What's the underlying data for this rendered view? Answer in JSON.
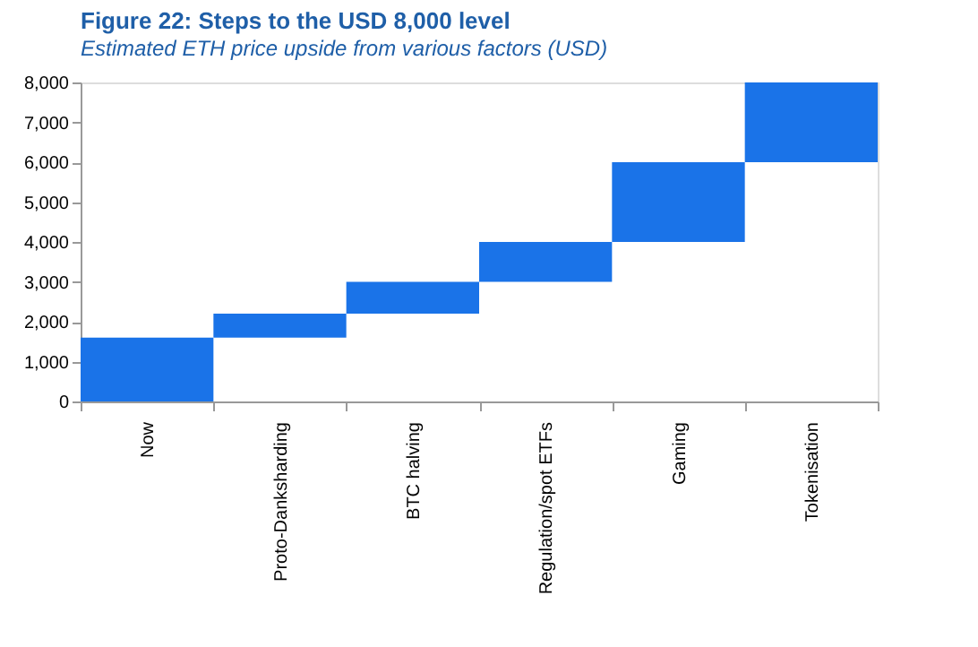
{
  "chart_data": {
    "type": "bar",
    "title": "Figure 22: Steps to the USD 8,000 level",
    "subtitle": "Estimated ETH price upside from various factors (USD)",
    "categories": [
      "Now",
      "Proto-Danksharding",
      "BTC halving",
      "Regulation/spot ETFs",
      "Gaming",
      "Tokenisation"
    ],
    "values": [
      1600,
      600,
      800,
      1000,
      2000,
      2000
    ],
    "base": [
      0,
      1600,
      2200,
      3000,
      4000,
      6000
    ],
    "color": "#1a73e8",
    "ylim": [
      0,
      8000
    ],
    "yticks": [
      {
        "value": 0,
        "label": "0"
      },
      {
        "value": 1000,
        "label": "1,000"
      },
      {
        "value": 2000,
        "label": "2,000"
      },
      {
        "value": 3000,
        "label": "3,000"
      },
      {
        "value": 4000,
        "label": "4,000"
      },
      {
        "value": 5000,
        "label": "5,000"
      },
      {
        "value": 6000,
        "label": "6,000"
      },
      {
        "value": 7000,
        "label": "7,000"
      },
      {
        "value": 8000,
        "label": "8,000"
      }
    ],
    "grid": false
  }
}
